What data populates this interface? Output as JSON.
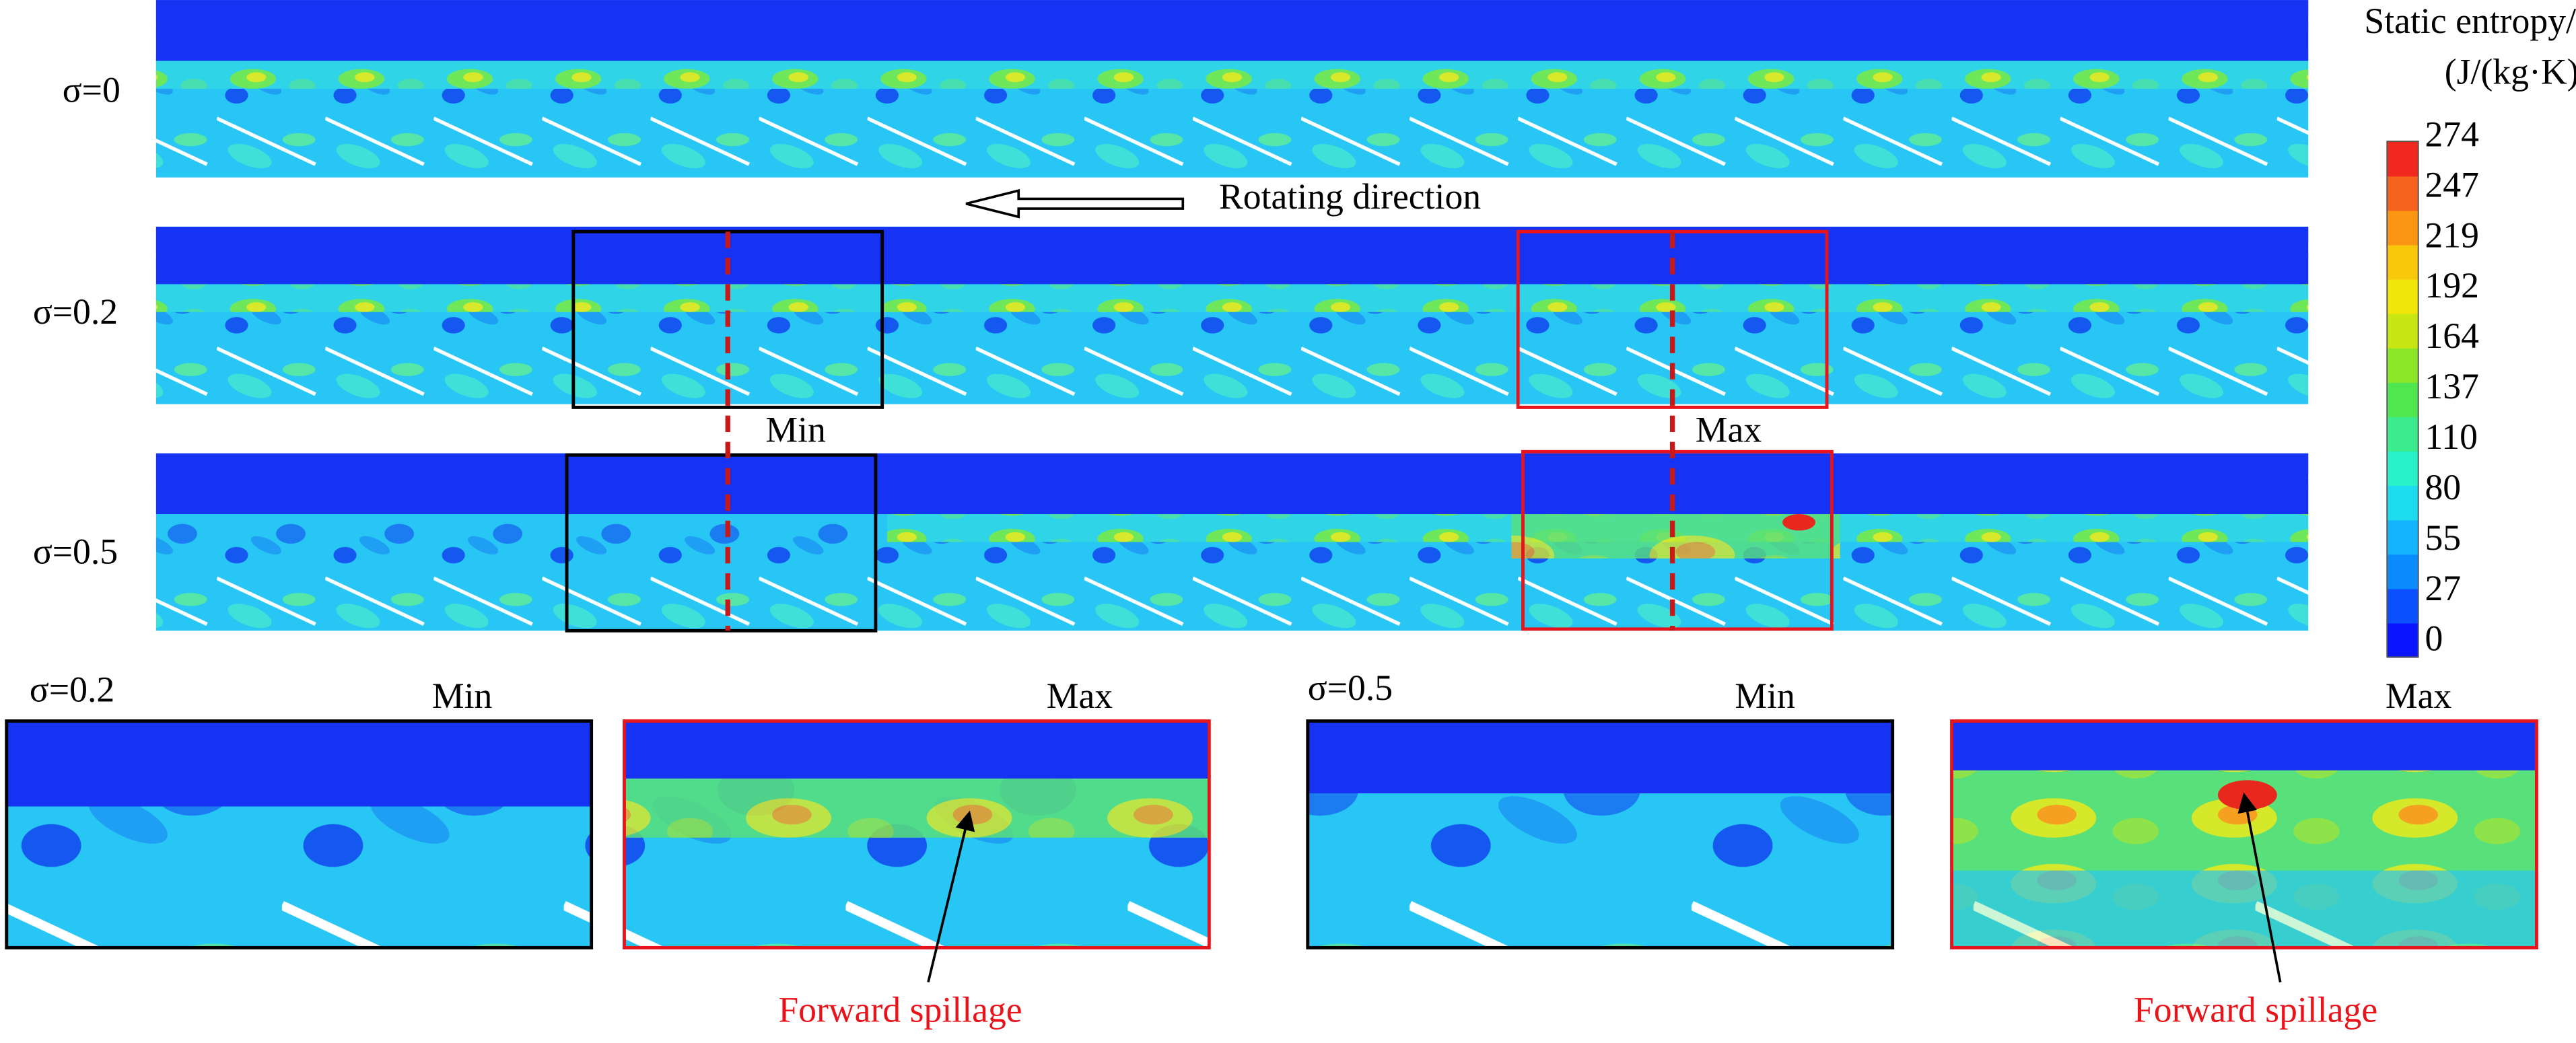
{
  "strips": [
    {
      "label": "σ=0"
    },
    {
      "label": "σ=0.2"
    },
    {
      "label": "σ=0.5"
    }
  ],
  "rotating_direction": "Rotating direction",
  "zoom_labels": [
    "Min",
    "Max"
  ],
  "colorbar": {
    "title": "Static entropy/",
    "unit": "(J/(kg·K))",
    "ticks": [
      274,
      247,
      219,
      192,
      164,
      137,
      110,
      80,
      55,
      27,
      0
    ]
  },
  "details": [
    {
      "label": "σ=0.2",
      "panels": [
        "Min",
        "Max"
      ],
      "annotation": "Forward spillage"
    },
    {
      "label": "σ=0.5",
      "panels": [
        "Min",
        "Max"
      ],
      "annotation": "Forward spillage"
    }
  ]
}
